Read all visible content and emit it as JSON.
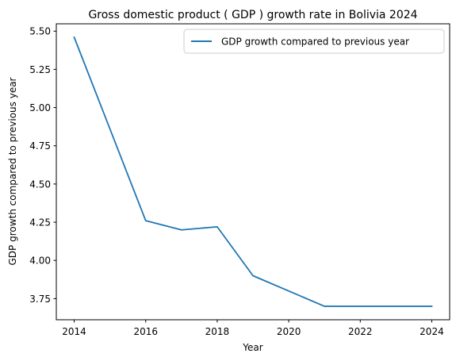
{
  "chart_data": {
    "type": "line",
    "title": "Gross domestic product ( GDP ) growth rate in Bolivia 2024",
    "xlabel": "Year",
    "ylabel": "GDP growth compared to previous year",
    "x": [
      2014,
      2016,
      2017,
      2018,
      2019,
      2021,
      2022,
      2023,
      2024
    ],
    "series": [
      {
        "name": "GDP growth compared to previous year",
        "values": [
          5.46,
          4.26,
          4.2,
          4.22,
          3.9,
          3.7,
          3.7,
          3.7,
          3.7
        ],
        "color": "#1f77b4"
      }
    ],
    "xticks": [
      "2014",
      "2016",
      "2018",
      "2020",
      "2022",
      "2024"
    ],
    "yticks": [
      "3.75",
      "4.00",
      "4.25",
      "4.50",
      "4.75",
      "5.00",
      "5.25",
      "5.50"
    ],
    "xlim": [
      2013.5,
      2024.5
    ],
    "ylim": [
      3.612,
      5.548
    ],
    "grid": false,
    "legend_position": "top-right"
  }
}
